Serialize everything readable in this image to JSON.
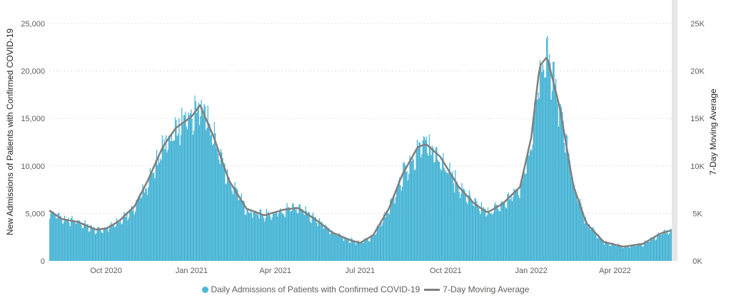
{
  "colors": {
    "bars": "#4db8d8",
    "ma_line": "#7f7f7f",
    "grid": "#e1e1e1",
    "scroll": "#e6e6e6"
  },
  "chart_data": {
    "type": "bar",
    "x_start": "2020-08-01",
    "x_end": "2022-06-01",
    "xlim": [
      "2020-08-01",
      "2022-06-01"
    ],
    "x_ticks": [
      {
        "date": "2020-10-01",
        "label": "Oct 2020"
      },
      {
        "date": "2021-01-01",
        "label": "Jan 2021"
      },
      {
        "date": "2021-04-01",
        "label": "Apr 2021"
      },
      {
        "date": "2021-07-01",
        "label": "Jul 2021"
      },
      {
        "date": "2021-10-01",
        "label": "Oct 2021"
      },
      {
        "date": "2022-01-01",
        "label": "Jan 2022"
      },
      {
        "date": "2022-04-01",
        "label": "Apr 2022"
      }
    ],
    "y_left": {
      "label": "New Admissions of Patients with Confirmed COVID-19",
      "lim": [
        0,
        25000
      ],
      "ticks": [
        {
          "v": 0,
          "label": "0"
        },
        {
          "v": 5000,
          "label": "5,000"
        },
        {
          "v": 10000,
          "label": "10,000"
        },
        {
          "v": 15000,
          "label": "15,000"
        },
        {
          "v": 20000,
          "label": "20,000"
        },
        {
          "v": 25000,
          "label": "25,000"
        }
      ]
    },
    "y_right": {
      "label": "7-Day Moving Average",
      "lim": [
        0,
        25000
      ],
      "ticks": [
        {
          "v": 0,
          "label": "0K"
        },
        {
          "v": 5000,
          "label": "5K"
        },
        {
          "v": 10000,
          "label": "10K"
        },
        {
          "v": 15000,
          "label": "15K"
        },
        {
          "v": 20000,
          "label": "20K"
        },
        {
          "v": 25000,
          "label": "25K"
        }
      ]
    },
    "grid": true,
    "series": [
      {
        "name": "Daily Admissions of Patients with Confirmed COVID-19",
        "kind": "bar",
        "color": "#4db8d8",
        "points": [
          {
            "date": "2020-08-01",
            "value": 5300
          },
          {
            "date": "2020-08-15",
            "value": 4400
          },
          {
            "date": "2020-09-01",
            "value": 4100
          },
          {
            "date": "2020-09-20",
            "value": 3300
          },
          {
            "date": "2020-10-01",
            "value": 3400
          },
          {
            "date": "2020-10-15",
            "value": 4200
          },
          {
            "date": "2020-11-01",
            "value": 5800
          },
          {
            "date": "2020-11-15",
            "value": 8500
          },
          {
            "date": "2020-12-01",
            "value": 12000
          },
          {
            "date": "2020-12-15",
            "value": 14000
          },
          {
            "date": "2021-01-01",
            "value": 15200
          },
          {
            "date": "2021-01-10",
            "value": 16400
          },
          {
            "date": "2021-01-25",
            "value": 13000
          },
          {
            "date": "2021-02-10",
            "value": 8500
          },
          {
            "date": "2021-03-01",
            "value": 5500
          },
          {
            "date": "2021-03-20",
            "value": 4800
          },
          {
            "date": "2021-04-10",
            "value": 5400
          },
          {
            "date": "2021-04-25",
            "value": 5600
          },
          {
            "date": "2021-05-15",
            "value": 4300
          },
          {
            "date": "2021-06-01",
            "value": 3000
          },
          {
            "date": "2021-06-20",
            "value": 2200
          },
          {
            "date": "2021-07-01",
            "value": 1900
          },
          {
            "date": "2021-07-15",
            "value": 2700
          },
          {
            "date": "2021-08-01",
            "value": 5500
          },
          {
            "date": "2021-08-15",
            "value": 9000
          },
          {
            "date": "2021-09-01",
            "value": 12000
          },
          {
            "date": "2021-09-10",
            "value": 12300
          },
          {
            "date": "2021-09-25",
            "value": 11000
          },
          {
            "date": "2021-10-15",
            "value": 7800
          },
          {
            "date": "2021-11-01",
            "value": 6000
          },
          {
            "date": "2021-11-15",
            "value": 5100
          },
          {
            "date": "2021-12-01",
            "value": 6000
          },
          {
            "date": "2021-12-20",
            "value": 7800
          },
          {
            "date": "2022-01-01",
            "value": 13000
          },
          {
            "date": "2022-01-10",
            "value": 20500
          },
          {
            "date": "2022-01-18",
            "value": 21500
          },
          {
            "date": "2022-02-01",
            "value": 16000
          },
          {
            "date": "2022-02-15",
            "value": 8000
          },
          {
            "date": "2022-03-01",
            "value": 4000
          },
          {
            "date": "2022-03-20",
            "value": 2000
          },
          {
            "date": "2022-04-10",
            "value": 1500
          },
          {
            "date": "2022-05-01",
            "value": 1800
          },
          {
            "date": "2022-05-20",
            "value": 2900
          },
          {
            "date": "2022-05-31",
            "value": 3200
          }
        ]
      },
      {
        "name": "7-Day Moving Average",
        "kind": "line",
        "color": "#7f7f7f",
        "points": [
          {
            "date": "2020-08-01",
            "value": 5300
          },
          {
            "date": "2020-08-15",
            "value": 4400
          },
          {
            "date": "2020-09-01",
            "value": 4100
          },
          {
            "date": "2020-09-20",
            "value": 3300
          },
          {
            "date": "2020-10-01",
            "value": 3400
          },
          {
            "date": "2020-10-15",
            "value": 4200
          },
          {
            "date": "2020-11-01",
            "value": 5800
          },
          {
            "date": "2020-11-15",
            "value": 8500
          },
          {
            "date": "2020-12-01",
            "value": 12000
          },
          {
            "date": "2020-12-15",
            "value": 14000
          },
          {
            "date": "2021-01-01",
            "value": 15200
          },
          {
            "date": "2021-01-10",
            "value": 16400
          },
          {
            "date": "2021-01-25",
            "value": 13000
          },
          {
            "date": "2021-02-10",
            "value": 8500
          },
          {
            "date": "2021-03-01",
            "value": 5500
          },
          {
            "date": "2021-03-20",
            "value": 4800
          },
          {
            "date": "2021-04-10",
            "value": 5400
          },
          {
            "date": "2021-04-25",
            "value": 5600
          },
          {
            "date": "2021-05-15",
            "value": 4300
          },
          {
            "date": "2021-06-01",
            "value": 3000
          },
          {
            "date": "2021-06-20",
            "value": 2200
          },
          {
            "date": "2021-07-01",
            "value": 1900
          },
          {
            "date": "2021-07-15",
            "value": 2700
          },
          {
            "date": "2021-08-01",
            "value": 5500
          },
          {
            "date": "2021-08-15",
            "value": 9000
          },
          {
            "date": "2021-09-01",
            "value": 12000
          },
          {
            "date": "2021-09-10",
            "value": 12300
          },
          {
            "date": "2021-09-25",
            "value": 11000
          },
          {
            "date": "2021-10-15",
            "value": 7800
          },
          {
            "date": "2021-11-01",
            "value": 6000
          },
          {
            "date": "2021-11-15",
            "value": 5100
          },
          {
            "date": "2021-12-01",
            "value": 6000
          },
          {
            "date": "2021-12-20",
            "value": 7800
          },
          {
            "date": "2022-01-01",
            "value": 13000
          },
          {
            "date": "2022-01-10",
            "value": 20500
          },
          {
            "date": "2022-01-18",
            "value": 21500
          },
          {
            "date": "2022-02-01",
            "value": 16000
          },
          {
            "date": "2022-02-15",
            "value": 8000
          },
          {
            "date": "2022-03-01",
            "value": 4000
          },
          {
            "date": "2022-03-20",
            "value": 2000
          },
          {
            "date": "2022-04-10",
            "value": 1500
          },
          {
            "date": "2022-05-01",
            "value": 1800
          },
          {
            "date": "2022-05-20",
            "value": 2900
          },
          {
            "date": "2022-05-31",
            "value": 3200
          }
        ]
      }
    ],
    "legend_position": "bottom-center"
  }
}
